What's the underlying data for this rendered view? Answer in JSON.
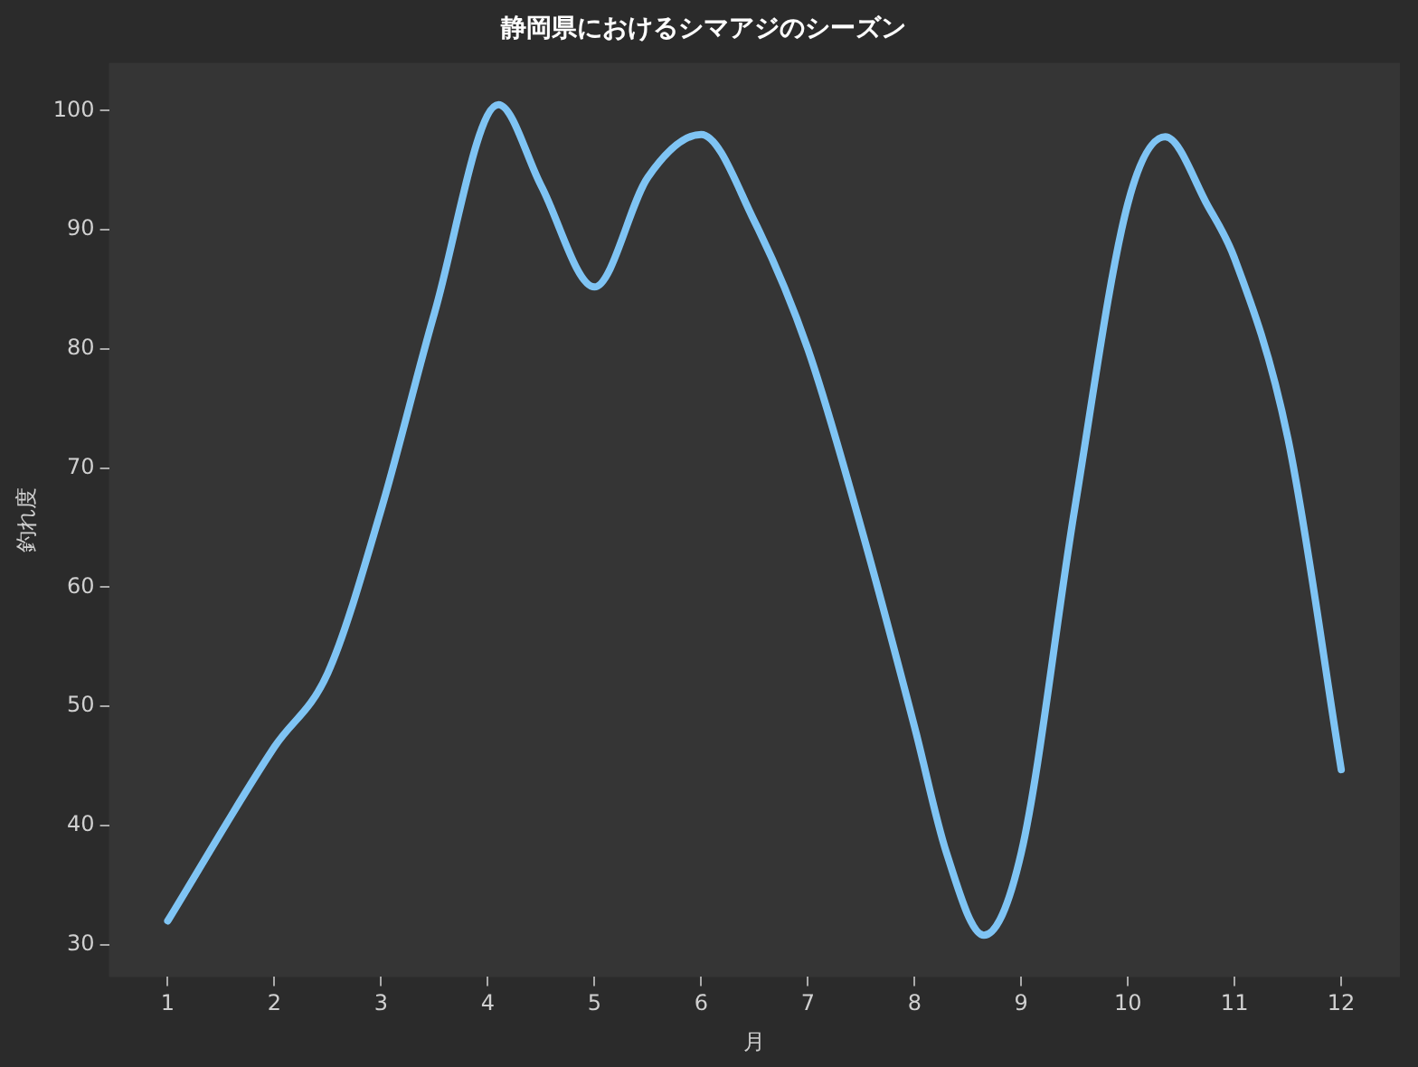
{
  "chart_data": {
    "type": "line",
    "title": "静岡県におけるシマアジのシーズン",
    "xlabel": "月",
    "ylabel": "釣れ度",
    "xlim": [
      0.45,
      12.55
    ],
    "xticks": [
      1,
      2,
      3,
      4,
      5,
      6,
      7,
      8,
      9,
      10,
      11,
      12
    ],
    "ylim": [
      27.3,
      104
    ],
    "yticks": [
      30,
      40,
      50,
      60,
      70,
      80,
      90,
      100
    ],
    "grid": false,
    "legend": false,
    "marker": "none",
    "line_style": "solid",
    "series": [
      {
        "color": "#7fc4f4",
        "x": [
          1,
          2,
          2.5,
          3,
          3.5,
          4.1,
          4.5,
          5,
          5.5,
          6,
          6.5,
          7,
          7.5,
          8,
          8.3,
          8.65,
          9,
          9.5,
          10,
          10.35,
          10.75,
          11,
          11.5,
          12
        ],
        "values": [
          32,
          46.6,
          52.8,
          66.5,
          83,
          100.5,
          93.7,
          85.2,
          94.4,
          98,
          90.7,
          80,
          65,
          48.3,
          37.7,
          30.8,
          37.7,
          66.5,
          92.2,
          97.8,
          92,
          87.6,
          72.5,
          44.7
        ]
      }
    ]
  }
}
